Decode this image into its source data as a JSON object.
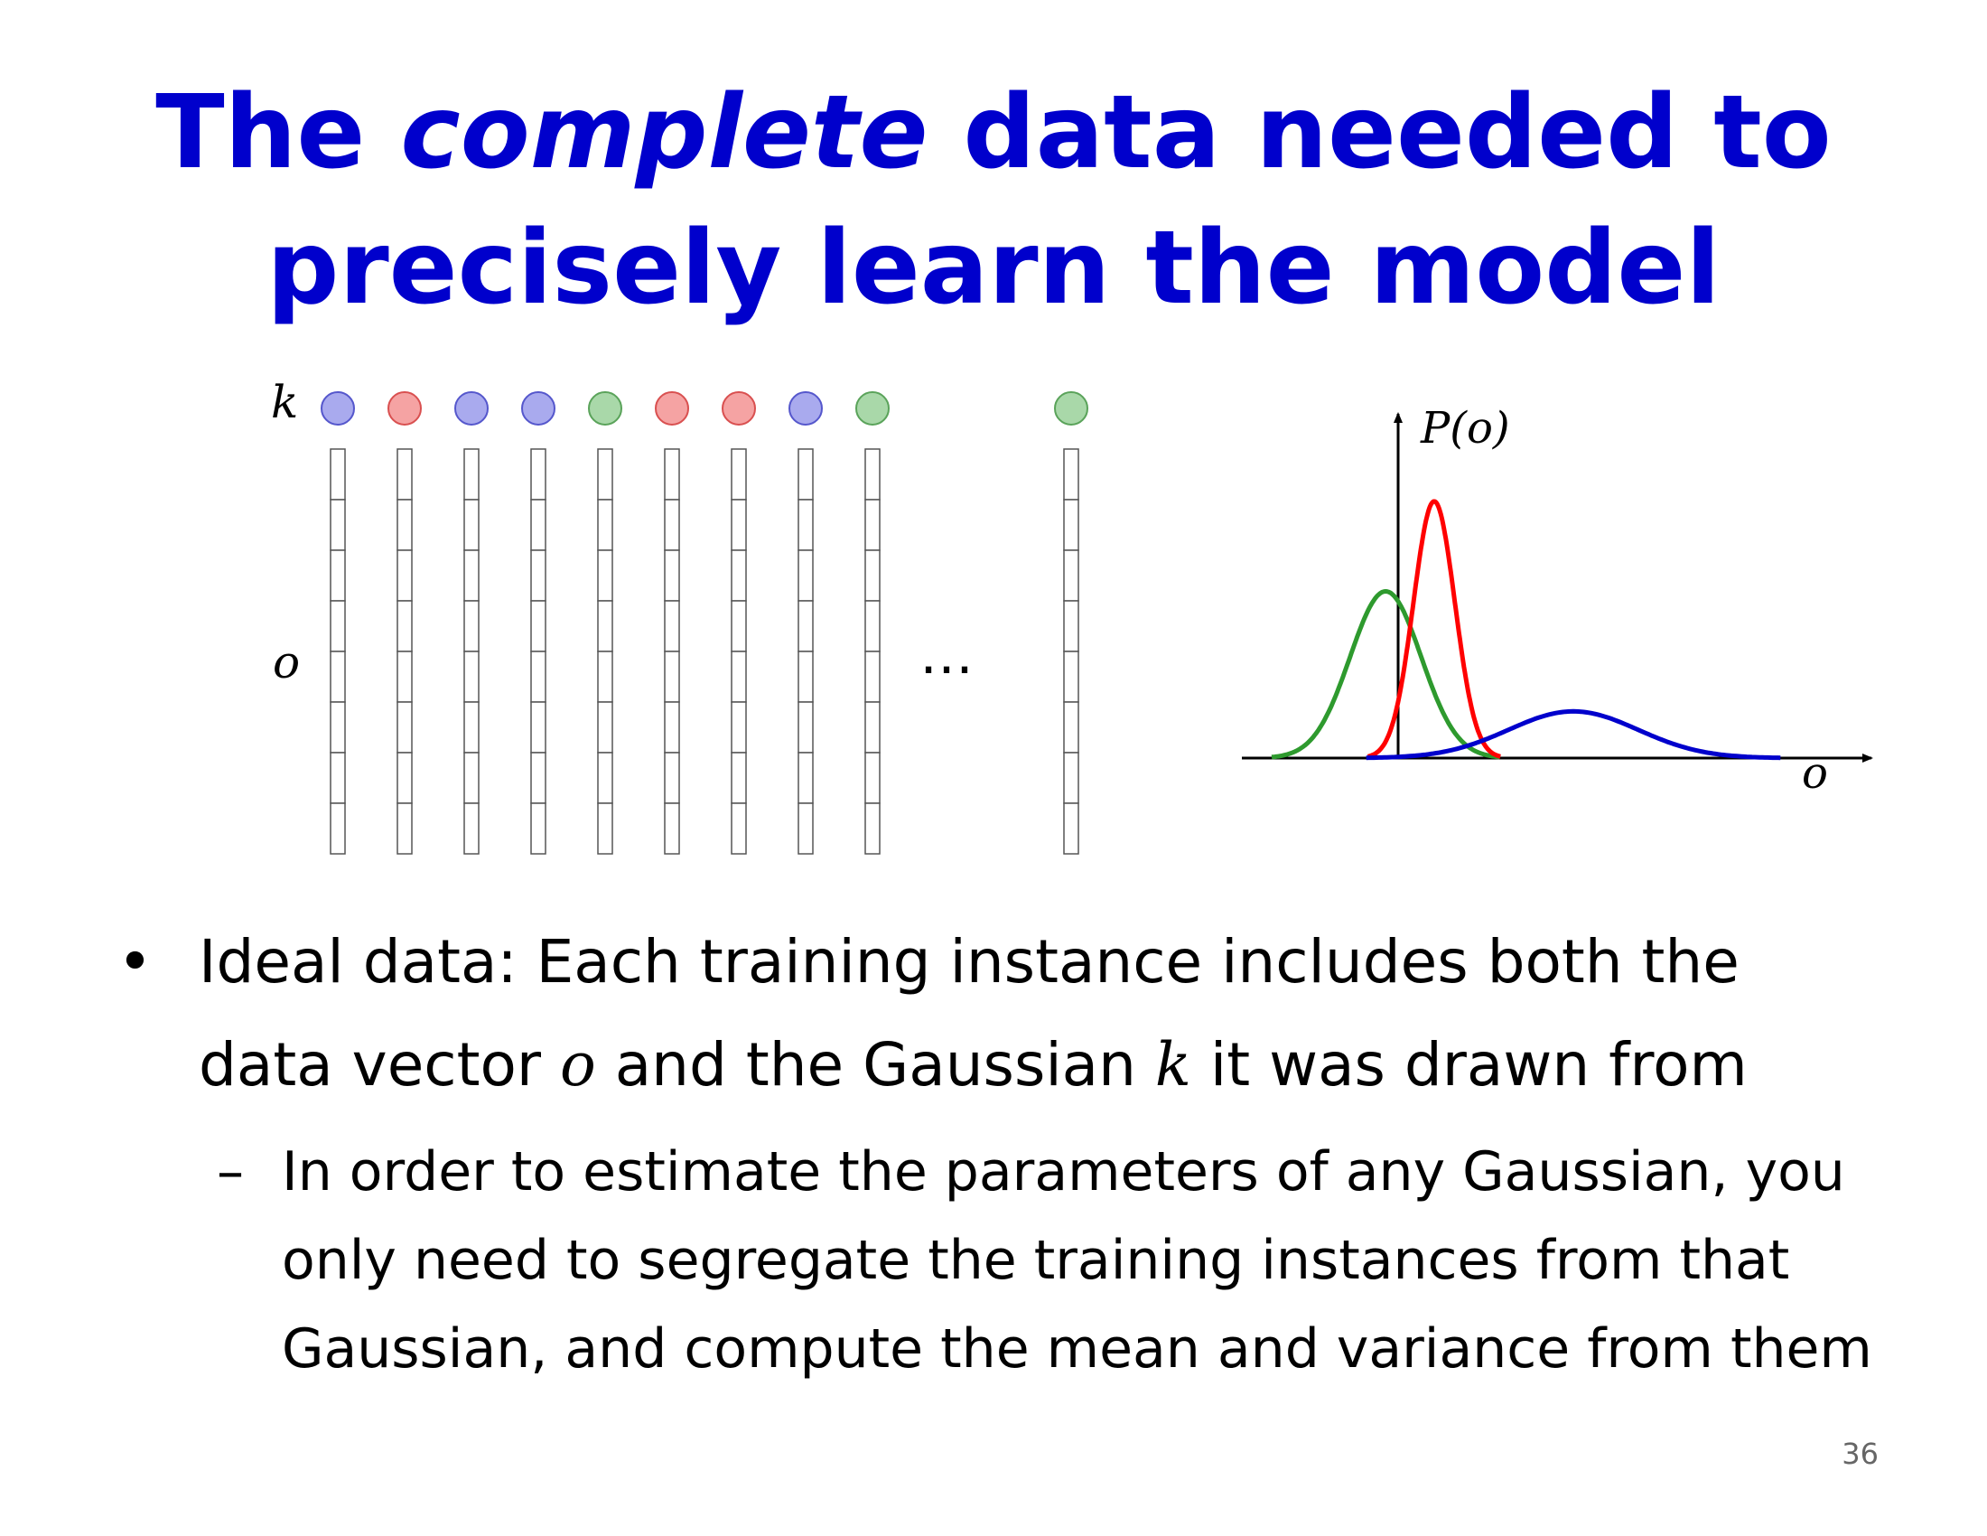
{
  "slide": {
    "title_line1_pre": "The ",
    "title_line1_italic": "complete",
    "title_line1_post": " data needed to",
    "title_line2": "precisely learn the model",
    "page_number": "36"
  },
  "diagram": {
    "label_k": "k",
    "label_o": "o",
    "ellipsis": "…",
    "instance_colors": [
      "blue",
      "red",
      "blue",
      "blue",
      "green",
      "red",
      "red",
      "blue",
      "green",
      "green"
    ],
    "colors": {
      "blue": {
        "fill": "#a9aaee",
        "stroke": "#5557cc"
      },
      "red": {
        "fill": "#f5a3a3",
        "stroke": "#d95050"
      },
      "green": {
        "fill": "#a9d8a9",
        "stroke": "#5aa35a"
      }
    },
    "cells_per_vector": 8
  },
  "chart_data": {
    "type": "line",
    "title": "",
    "xlabel": "o",
    "ylabel": "P(o)",
    "series": [
      {
        "color": "#2e9a2e",
        "mean": -0.3,
        "std": 0.55,
        "peak": 0.5
      },
      {
        "color": "#ff0000",
        "mean": 0.45,
        "std": 0.32,
        "peak": 0.77
      },
      {
        "color": "#0000cc",
        "mean": 2.6,
        "std": 1.0,
        "peak": 0.14
      }
    ],
    "xlim": [
      -2.2,
      6.2
    ],
    "ylim": [
      0,
      1
    ]
  },
  "bullets": {
    "level1": {
      "marker": "•",
      "line1": "Ideal data:  Each training instance includes both the",
      "line2_a": "data vector ",
      "line2_o": "o",
      "line2_b": " and the Gaussian ",
      "line2_k": "k",
      "line2_c": " it was drawn from"
    },
    "level2": {
      "marker": "–",
      "line1": "In order to estimate the parameters of any Gaussian, you",
      "line2": "only need to segregate the training instances from that",
      "line3": "Gaussian, and compute the mean and variance from them"
    }
  }
}
